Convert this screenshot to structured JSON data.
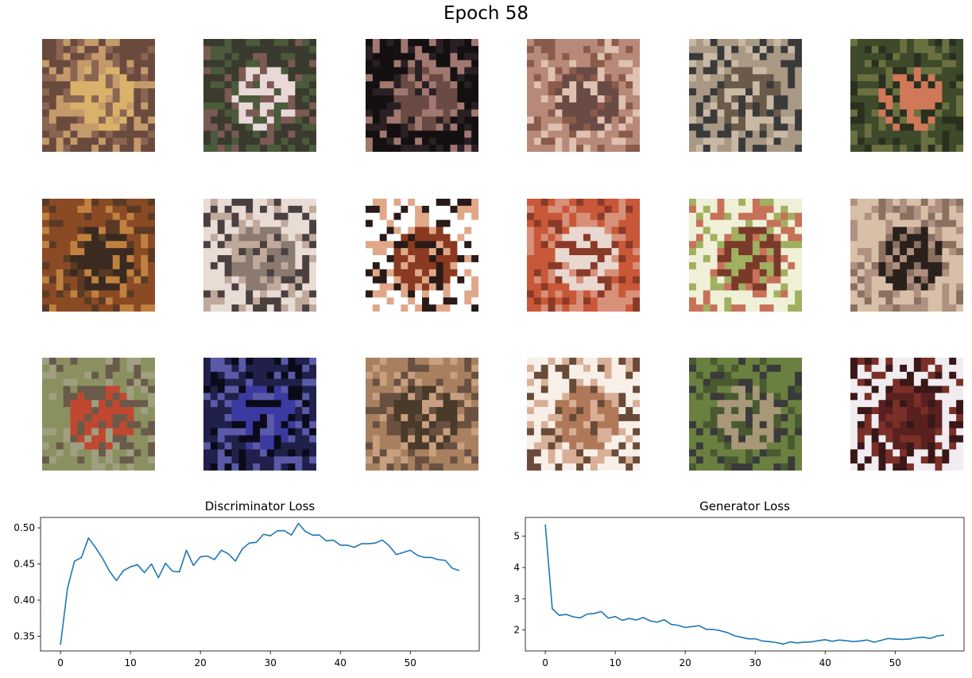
{
  "figure": {
    "title": "Epoch 58"
  },
  "samples": {
    "rows": 3,
    "cols": 6,
    "images": [
      {
        "name": "sample-image-1",
        "colors": [
          "#6b4a3e",
          "#d9b16a",
          "#8a6552",
          "#c59a6a"
        ]
      },
      {
        "name": "sample-image-2",
        "colors": [
          "#3a3a2e",
          "#e8d8d8",
          "#7a5a52",
          "#4a5a3a"
        ]
      },
      {
        "name": "sample-image-3",
        "colors": [
          "#141012",
          "#6a4a44",
          "#a07870",
          "#2a2024"
        ]
      },
      {
        "name": "sample-image-4",
        "colors": [
          "#b88878",
          "#6a4a44",
          "#e0c0b0",
          "#8a5a4a"
        ]
      },
      {
        "name": "sample-image-5",
        "colors": [
          "#a89884",
          "#6a5a4a",
          "#c8b8a4",
          "#3a3a3a"
        ]
      },
      {
        "name": "sample-image-6",
        "colors": [
          "#3e4a2a",
          "#d07858",
          "#2a3020",
          "#6a7040"
        ]
      },
      {
        "name": "sample-image-7",
        "colors": [
          "#8a4a24",
          "#3a2a20",
          "#c08040",
          "#5a3a24"
        ]
      },
      {
        "name": "sample-image-8",
        "colors": [
          "#e8dcd4",
          "#8a7a70",
          "#c0a89a",
          "#4a4040"
        ]
      },
      {
        "name": "sample-image-9",
        "colors": [
          "#ffffff",
          "#8a3a20",
          "#2a1a18",
          "#e0a888"
        ]
      },
      {
        "name": "sample-image-10",
        "colors": [
          "#c85838",
          "#e8d8d0",
          "#8a3a28",
          "#d89078"
        ]
      },
      {
        "name": "sample-image-11",
        "colors": [
          "#f0f0d8",
          "#7a3a2a",
          "#a0b060",
          "#c87058"
        ]
      },
      {
        "name": "sample-image-12",
        "colors": [
          "#d8c0a8",
          "#2a201c",
          "#8a7060",
          "#b09080"
        ]
      },
      {
        "name": "sample-image-13",
        "colors": [
          "#8a9060",
          "#c04830",
          "#6a5a4a",
          "#a0a080"
        ]
      },
      {
        "name": "sample-image-14",
        "colors": [
          "#20204a",
          "#3a3aa0",
          "#0a0a1a",
          "#5a5aa8"
        ]
      },
      {
        "name": "sample-image-15",
        "colors": [
          "#a88060",
          "#4a3a2a",
          "#c8a080",
          "#6a5040"
        ]
      },
      {
        "name": "sample-image-16",
        "colors": [
          "#f8f0e8",
          "#b07858",
          "#d8b098",
          "#6a4a38"
        ]
      },
      {
        "name": "sample-image-17",
        "colors": [
          "#6a8040",
          "#a89878",
          "#4a5a30",
          "#3a3a3a"
        ]
      },
      {
        "name": "sample-image-18",
        "colors": [
          "#f0ecf0",
          "#5a2020",
          "#7a3028",
          "#3a1818"
        ]
      }
    ]
  },
  "chart_data": [
    {
      "type": "line",
      "title": "Discriminator Loss",
      "xlabel": "",
      "ylabel": "",
      "x": [
        0,
        1,
        2,
        3,
        4,
        5,
        6,
        7,
        8,
        9,
        10,
        11,
        12,
        13,
        14,
        15,
        16,
        17,
        18,
        19,
        20,
        21,
        22,
        23,
        24,
        25,
        26,
        27,
        28,
        29,
        30,
        31,
        32,
        33,
        34,
        35,
        36,
        37,
        38,
        39,
        40,
        41,
        42,
        43,
        44,
        45,
        46,
        47,
        48,
        49,
        50,
        51,
        52,
        53,
        54,
        55,
        56,
        57
      ],
      "values": [
        0.338,
        0.416,
        0.454,
        0.459,
        0.486,
        0.473,
        0.458,
        0.44,
        0.427,
        0.441,
        0.446,
        0.449,
        0.438,
        0.45,
        0.431,
        0.451,
        0.44,
        0.439,
        0.469,
        0.448,
        0.46,
        0.461,
        0.456,
        0.469,
        0.464,
        0.454,
        0.471,
        0.479,
        0.48,
        0.491,
        0.489,
        0.496,
        0.496,
        0.49,
        0.506,
        0.495,
        0.49,
        0.49,
        0.482,
        0.483,
        0.476,
        0.476,
        0.473,
        0.478,
        0.478,
        0.479,
        0.483,
        0.475,
        0.463,
        0.466,
        0.469,
        0.462,
        0.459,
        0.459,
        0.456,
        0.455,
        0.444,
        0.441
      ],
      "xticks": [
        0,
        10,
        20,
        30,
        40,
        50
      ],
      "yticks": [
        0.35,
        0.4,
        0.45,
        0.5
      ],
      "ytick_labels": [
        "0.35",
        "0.40",
        "0.45",
        "0.50"
      ],
      "xlim": [
        -2.85,
        59.85
      ],
      "ylim": [
        0.3296,
        0.5144
      ],
      "color": "#1f77b4",
      "grid": false
    },
    {
      "type": "line",
      "title": "Generator Loss",
      "xlabel": "",
      "ylabel": "",
      "x": [
        0,
        1,
        2,
        3,
        4,
        5,
        6,
        7,
        8,
        9,
        10,
        11,
        12,
        13,
        14,
        15,
        16,
        17,
        18,
        19,
        20,
        21,
        22,
        23,
        24,
        25,
        26,
        27,
        28,
        29,
        30,
        31,
        32,
        33,
        34,
        35,
        36,
        37,
        38,
        39,
        40,
        41,
        42,
        43,
        44,
        45,
        46,
        47,
        48,
        49,
        50,
        51,
        52,
        53,
        54,
        55,
        56,
        57
      ],
      "values": [
        5.38,
        2.68,
        2.47,
        2.5,
        2.42,
        2.39,
        2.51,
        2.53,
        2.59,
        2.38,
        2.43,
        2.31,
        2.37,
        2.32,
        2.4,
        2.29,
        2.25,
        2.33,
        2.18,
        2.15,
        2.08,
        2.11,
        2.14,
        2.02,
        2.02,
        1.98,
        1.92,
        1.82,
        1.77,
        1.72,
        1.72,
        1.65,
        1.63,
        1.6,
        1.55,
        1.62,
        1.59,
        1.61,
        1.62,
        1.66,
        1.69,
        1.64,
        1.68,
        1.66,
        1.63,
        1.65,
        1.68,
        1.61,
        1.67,
        1.73,
        1.71,
        1.7,
        1.71,
        1.75,
        1.77,
        1.73,
        1.81,
        1.84
      ],
      "xticks": [
        0,
        10,
        20,
        30,
        40,
        50
      ],
      "yticks": [
        2,
        3,
        4,
        5
      ],
      "ytick_labels": [
        "2",
        "3",
        "4",
        "5"
      ],
      "xlim": [
        -2.85,
        59.85
      ],
      "ylim": [
        1.33,
        5.6
      ],
      "color": "#1f77b4",
      "grid": false
    }
  ]
}
